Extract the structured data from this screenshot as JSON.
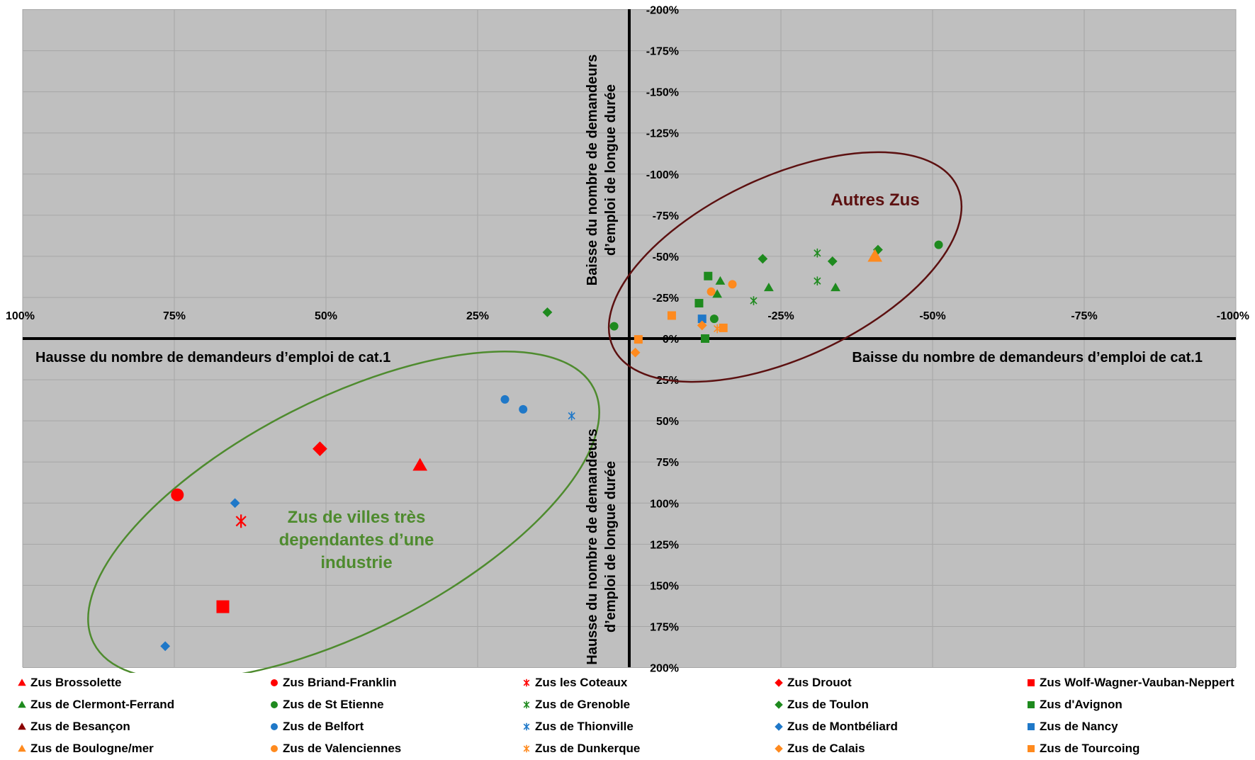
{
  "chart_data": {
    "type": "scatter",
    "title": "",
    "x_axis": {
      "range": [
        100,
        -100
      ],
      "ticks": [
        {
          "value": 100,
          "label": "100%"
        },
        {
          "value": 75,
          "label": "75%"
        },
        {
          "value": 50,
          "label": "50%"
        },
        {
          "value": 25,
          "label": "25%"
        },
        {
          "value": 0,
          "label": "0%"
        },
        {
          "value": -25,
          "label": "-25%"
        },
        {
          "value": -50,
          "label": "-50%"
        },
        {
          "value": -75,
          "label": "-75%"
        },
        {
          "value": -100,
          "label": "-100%"
        }
      ],
      "label_left": "Hausse du nombre de demandeurs d’emploi de cat.1",
      "label_right": "Baisse du nombre de demandeurs d’emploi de cat.1"
    },
    "y_axis": {
      "range": [
        -200,
        200
      ],
      "ticks": [
        {
          "value": -200,
          "label": "-200%"
        },
        {
          "value": -175,
          "label": "-175%"
        },
        {
          "value": -150,
          "label": "-150%"
        },
        {
          "value": -125,
          "label": "-125%"
        },
        {
          "value": -100,
          "label": "-100%"
        },
        {
          "value": -75,
          "label": "-75%"
        },
        {
          "value": -50,
          "label": "-50%"
        },
        {
          "value": -25,
          "label": "-25%"
        },
        {
          "value": 0,
          "label": "0%"
        },
        {
          "value": 25,
          "label": "25%"
        },
        {
          "value": 50,
          "label": "50%"
        },
        {
          "value": 75,
          "label": "75%"
        },
        {
          "value": 100,
          "label": "100%"
        },
        {
          "value": 125,
          "label": "125%"
        },
        {
          "value": 150,
          "label": "150%"
        },
        {
          "value": 175,
          "label": "175%"
        },
        {
          "value": 200,
          "label": "200%"
        }
      ],
      "label_top": [
        "Baisse du nombre de demandeurs",
        "d’emploi de longue durée"
      ],
      "label_bottom": [
        "Hausse du nombre de demandeurs",
        "d’emploi de longue durée"
      ]
    },
    "grid": true,
    "legend_position": "bottom",
    "annotations": [
      {
        "text": [
          "Autres Zus"
        ],
        "color": "#5c1010"
      },
      {
        "text": [
          "Zus de villes très",
          "dependantes d’une",
          "industrie"
        ],
        "color": "#4e8b2e"
      }
    ],
    "series": [
      {
        "name": "Zus Brossolette",
        "color": "#ff0000",
        "marker": "triangle",
        "size": "large",
        "points": [
          [
            34.5,
            77
          ]
        ]
      },
      {
        "name": "Zus Briand-Franklin",
        "color": "#ff0000",
        "marker": "circle",
        "size": "large",
        "points": [
          [
            74.5,
            95
          ]
        ]
      },
      {
        "name": "Zus les Coteaux",
        "color": "#ff0000",
        "marker": "star",
        "size": "large",
        "points": [
          [
            64,
            111
          ]
        ]
      },
      {
        "name": "Zus Drouot",
        "color": "#ff0000",
        "marker": "diamond",
        "size": "large",
        "points": [
          [
            51,
            67
          ]
        ]
      },
      {
        "name": "Zus Wolf-Wagner-Vauban-Neppert",
        "color": "#ff0000",
        "marker": "square",
        "size": "large",
        "points": [
          [
            67,
            163
          ]
        ]
      },
      {
        "name": "Zus de Clermont-Ferrand",
        "color": "#1e8a1e",
        "marker": "triangle",
        "size": "small",
        "points": [
          [
            -15,
            -35
          ],
          [
            -14.5,
            -27
          ],
          [
            -23,
            -31
          ],
          [
            -34,
            -31
          ]
        ]
      },
      {
        "name": "Zus de St Etienne",
        "color": "#1e8a1e",
        "marker": "circle",
        "size": "small",
        "points": [
          [
            -51,
            -57
          ],
          [
            2.5,
            -7.5
          ],
          [
            -14,
            -12
          ]
        ]
      },
      {
        "name": "Zus de Grenoble",
        "color": "#1e8a1e",
        "marker": "star",
        "size": "small",
        "points": [
          [
            -31,
            -52
          ],
          [
            -31,
            -35
          ],
          [
            -20.5,
            -23
          ]
        ]
      },
      {
        "name": "Zus de Toulon",
        "color": "#1e8a1e",
        "marker": "diamond",
        "size": "small",
        "points": [
          [
            -41,
            -54
          ],
          [
            -33.5,
            -47
          ],
          [
            -22,
            -48.5
          ],
          [
            13.5,
            -16
          ]
        ]
      },
      {
        "name": "Zus d'Avignon",
        "color": "#1e8a1e",
        "marker": "square",
        "size": "small",
        "points": [
          [
            -13,
            -38
          ],
          [
            -11.5,
            -21.5
          ],
          [
            -12.5,
            0
          ]
        ]
      },
      {
        "name": "Zus de Besançon",
        "color": "#8b0000",
        "marker": "triangle",
        "size": "small",
        "points": []
      },
      {
        "name": "Zus de Belfort",
        "color": "#1f78c8",
        "marker": "circle",
        "size": "small",
        "points": [
          [
            20.5,
            37
          ],
          [
            17.5,
            43
          ]
        ]
      },
      {
        "name": "Zus de Thionville",
        "color": "#1f78c8",
        "marker": "star",
        "size": "small",
        "points": [
          [
            9.5,
            47
          ]
        ]
      },
      {
        "name": "Zus de Montbéliard",
        "color": "#1f78c8",
        "marker": "diamond",
        "size": "small",
        "points": [
          [
            65,
            100
          ],
          [
            76.5,
            187
          ]
        ]
      },
      {
        "name": "Zus de Nancy",
        "color": "#1f78c8",
        "marker": "square",
        "size": "small",
        "points": [
          [
            -12,
            -12
          ]
        ]
      },
      {
        "name": "Zus de Boulogne/mer",
        "color": "#ff8a1e",
        "marker": "triangle",
        "size": "large",
        "points": [
          [
            -40.5,
            -50
          ]
        ]
      },
      {
        "name": "Zus de Valenciennes",
        "color": "#ff8a1e",
        "marker": "circle",
        "size": "small",
        "points": [
          [
            -17,
            -33
          ],
          [
            -13.5,
            -28.5
          ]
        ]
      },
      {
        "name": "Zus de Dunkerque",
        "color": "#ff8a1e",
        "marker": "star",
        "size": "small",
        "points": [
          [
            -14.5,
            -6
          ]
        ]
      },
      {
        "name": "Zus de Calais",
        "color": "#ff8a1e",
        "marker": "diamond",
        "size": "small",
        "points": [
          [
            -12,
            -8
          ],
          [
            -1,
            8.5
          ]
        ]
      },
      {
        "name": "Zus de Tourcoing",
        "color": "#ff8a1e",
        "marker": "square",
        "size": "small",
        "points": [
          [
            -7,
            -14
          ],
          [
            -15.5,
            -6.5
          ],
          [
            -1.5,
            0.5
          ]
        ]
      }
    ]
  }
}
